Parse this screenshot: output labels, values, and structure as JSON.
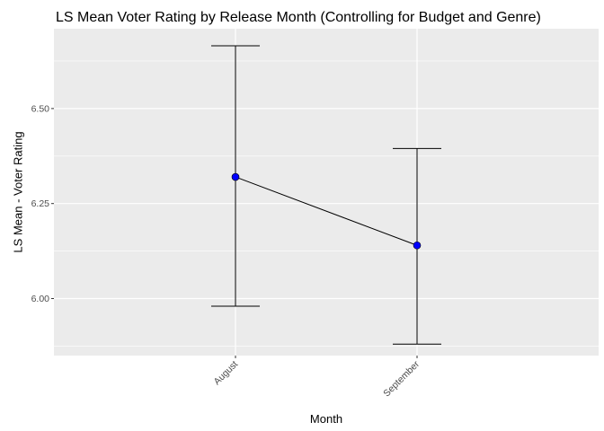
{
  "chart_data": {
    "type": "line",
    "title": "LS Mean Voter Rating by Release Month (Controlling for Budget and Genre)",
    "xlabel": "Month",
    "ylabel": "LS Mean - Voter Rating",
    "categories": [
      "August",
      "September"
    ],
    "series": [
      {
        "values": [
          6.32,
          6.14
        ],
        "lower": [
          5.98,
          5.88
        ],
        "upper": [
          6.665,
          6.395
        ]
      }
    ],
    "ylim": [
      5.85,
      6.71
    ],
    "yticks": [
      6.0,
      6.25,
      6.5
    ],
    "ytick_labels": [
      "6.00",
      "6.25",
      "6.50"
    ],
    "grid": true,
    "x_tick_rotation": -45,
    "colors": {
      "panel": "#EBEBEB",
      "grid": "#FFFFFF",
      "point": "#0000FF",
      "line": "#000000",
      "tick_text": "#4D4D4D"
    }
  }
}
